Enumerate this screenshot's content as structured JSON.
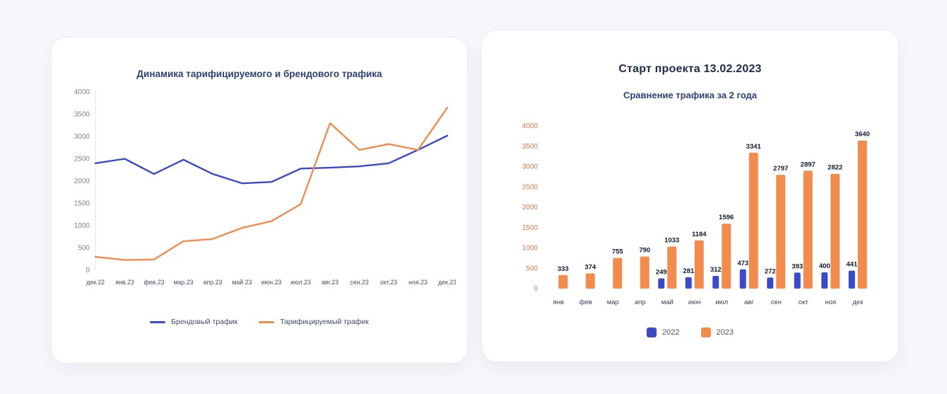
{
  "page": {
    "background": "#f6f7fa"
  },
  "line_card": {
    "title": "Динамика тарифицируемого и брендового трафика",
    "chart_data": {
      "type": "line",
      "categories": [
        "дек.22",
        "янв.23",
        "фев.23",
        "мар.23",
        "апр.23",
        "май 23",
        "июн.23",
        "июл.23",
        "авг.23",
        "сен.23",
        "окт.23",
        "ноя.23",
        "дек.23"
      ],
      "series": [
        {
          "name": "Брендовый трафик",
          "color": "#3b4bc8",
          "values": [
            2400,
            2500,
            2160,
            2480,
            2160,
            1950,
            1980,
            2280,
            2300,
            2330,
            2400,
            2700,
            3020
          ]
        },
        {
          "name": "Тарифицируемый трафик",
          "color": "#f28b4e",
          "values": [
            300,
            230,
            240,
            650,
            700,
            950,
            1100,
            1480,
            3300,
            2700,
            2830,
            2700,
            3650
          ]
        }
      ],
      "ylim": [
        0,
        4000
      ],
      "ytick_step": 500,
      "grid": false,
      "legend_position": "bottom",
      "data_labels": false,
      "style": {
        "ytick_color": "#7b8294",
        "xtick_color": "#434d63",
        "axis_color": "#dfe3ec",
        "label_color": "#0d1b33"
      }
    },
    "legend": [
      {
        "label": "Брендовый трафик",
        "color": "#3b4bc8"
      },
      {
        "label": "Тарифицируемый трафик",
        "color": "#f28b4e"
      }
    ]
  },
  "bar_card": {
    "title": "Старт проекта 13.02.2023",
    "subtitle": "Сравнение трафика за 2 года",
    "chart_data": {
      "type": "bar",
      "categories": [
        "янв",
        "фев",
        "мар",
        "апр",
        "май",
        "июн",
        "июл",
        "авг",
        "сен",
        "окт",
        "ноя",
        "дек"
      ],
      "series": [
        {
          "name": "2022",
          "color": "#3b4bc8",
          "values": [
            null,
            null,
            null,
            null,
            249,
            281,
            312,
            473,
            272,
            393,
            400,
            441
          ]
        },
        {
          "name": "2023",
          "color": "#f28b4e",
          "values": [
            333,
            374,
            755,
            790,
            1033,
            1184,
            1596,
            3341,
            2797,
            2897,
            2822,
            3640
          ]
        }
      ],
      "ylim": [
        0,
        4000
      ],
      "ytick_step": 500,
      "grid": false,
      "legend_position": "bottom",
      "data_labels": true,
      "style": {
        "ytick_color": "#cf7a4e",
        "xtick_color": "#38425f",
        "axis_color": "#ffffff",
        "label_color": "#0d1b33"
      }
    },
    "legend": [
      {
        "label": "2022",
        "color": "#3b4bc8"
      },
      {
        "label": "2023",
        "color": "#f28b4e"
      }
    ]
  }
}
